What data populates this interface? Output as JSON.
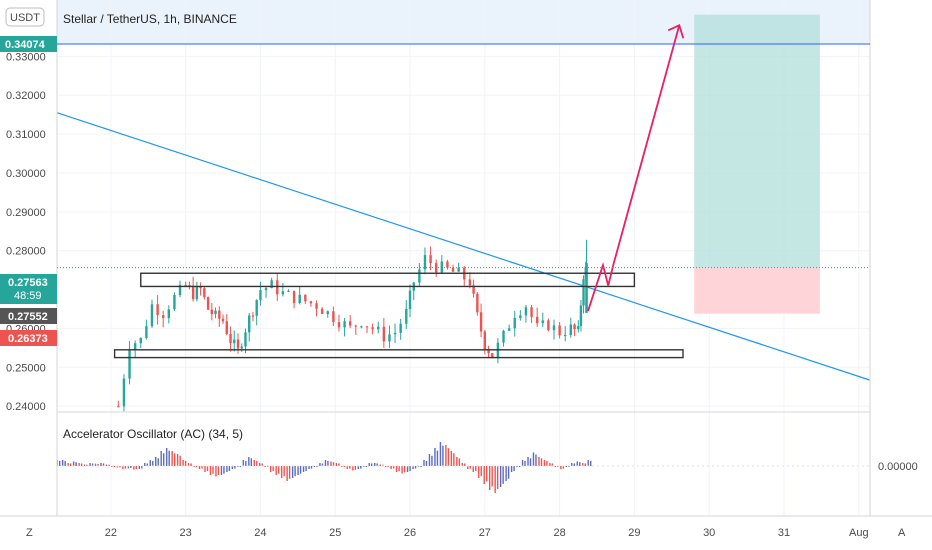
{
  "header": {
    "symbol_badge": "USDT",
    "title": "Stellar / TetherUS, 1h, BINANCE",
    "scale_mode_left": "Z",
    "scale_mode_right": "A"
  },
  "price_axis": {
    "ticks": [
      "0.33000",
      "0.32000",
      "0.31000",
      "0.30000",
      "0.29000",
      "0.28000",
      "0.26000",
      "0.25000",
      "0.24000"
    ],
    "labels": [
      {
        "text": "0.34074",
        "color": "#26a69a",
        "value": 0.34074
      },
      {
        "text": "0.27563",
        "color": "#26a69a",
        "value": 0.27563
      },
      {
        "text": "48:59",
        "color": "#26a69a",
        "value": 0.27563
      },
      {
        "text": "0.27552",
        "color": "#555555",
        "value": 0.27552
      },
      {
        "text": "0.26373",
        "color": "#ef5350",
        "value": 0.26373
      }
    ]
  },
  "time_axis": {
    "ticks": [
      "22",
      "23",
      "24",
      "25",
      "26",
      "27",
      "28",
      "29",
      "30",
      "31",
      "Aug"
    ]
  },
  "indicator": {
    "label": "Accelerator Oscillator (AC) (34, 5)",
    "value_label": "0.00000"
  },
  "colors": {
    "up": "#26a69a",
    "down": "#ef5350",
    "trendline": "#2196f3",
    "arrow": "#e91e63",
    "profit_zone": "#b2dfdb",
    "loss_zone": "#ffcdd2",
    "target_line": "#2962ff",
    "ac_up": "#5c6bc0",
    "ac_down": "#ef5350"
  },
  "chart_data": {
    "type": "candlestick",
    "title": "Stellar / TetherUS, 1h, BINANCE",
    "ylim": [
      0.2385,
      0.3445
    ],
    "x_range_days": [
      21.28,
      32.15
    ],
    "current_price": 0.27563,
    "target_price": 0.34074,
    "stop_price": 0.26373,
    "hourly_close_path": [
      [
        22.1,
        0.24
      ],
      [
        22.25,
        0.256
      ],
      [
        22.4,
        0.257
      ],
      [
        22.55,
        0.266
      ],
      [
        22.7,
        0.264
      ],
      [
        22.85,
        0.268
      ],
      [
        23.0,
        0.271
      ],
      [
        23.1,
        0.269
      ],
      [
        23.2,
        0.27
      ],
      [
        23.3,
        0.265
      ],
      [
        23.4,
        0.263
      ],
      [
        23.5,
        0.262
      ],
      [
        23.6,
        0.257
      ],
      [
        23.7,
        0.254
      ],
      [
        23.8,
        0.26
      ],
      [
        23.9,
        0.265
      ],
      [
        24.0,
        0.27
      ],
      [
        24.15,
        0.271
      ],
      [
        24.3,
        0.269
      ],
      [
        24.45,
        0.268
      ],
      [
        24.6,
        0.267
      ],
      [
        24.75,
        0.266
      ],
      [
        24.9,
        0.264
      ],
      [
        25.05,
        0.262
      ],
      [
        25.2,
        0.26
      ],
      [
        25.35,
        0.262
      ],
      [
        25.5,
        0.26
      ],
      [
        25.65,
        0.258
      ],
      [
        25.8,
        0.259
      ],
      [
        25.95,
        0.264
      ],
      [
        26.05,
        0.272
      ],
      [
        26.2,
        0.278
      ],
      [
        26.35,
        0.276
      ],
      [
        26.5,
        0.275
      ],
      [
        26.65,
        0.274
      ],
      [
        26.8,
        0.272
      ],
      [
        26.9,
        0.263
      ],
      [
        27.0,
        0.256
      ],
      [
        27.1,
        0.253
      ],
      [
        27.25,
        0.258
      ],
      [
        27.4,
        0.264
      ],
      [
        27.55,
        0.266
      ],
      [
        27.7,
        0.26
      ],
      [
        27.85,
        0.261
      ],
      [
        28.0,
        0.259
      ],
      [
        28.15,
        0.26
      ],
      [
        28.25,
        0.259
      ],
      [
        28.32,
        0.274
      ],
      [
        28.38,
        0.276
      ]
    ],
    "annotations": {
      "resistance_box": {
        "x": [
          22.4,
          29.0
        ],
        "y": [
          0.2708,
          0.2742
        ]
      },
      "support_box": {
        "x": [
          22.05,
          29.65
        ],
        "y": [
          0.2525,
          0.2545
        ]
      },
      "trendline": {
        "x": [
          21.28,
          32.15
        ],
        "y": [
          0.3155,
          0.2467
        ]
      },
      "projection_path": [
        [
          28.38,
          0.2645
        ],
        [
          28.58,
          0.2763
        ],
        [
          28.65,
          0.271
        ],
        [
          28.72,
          0.2765
        ],
        [
          29.6,
          0.338
        ]
      ],
      "position_tool": {
        "x": [
          29.8,
          31.48
        ],
        "entry": 0.2756,
        "target": 0.34074,
        "stop": 0.2638
      }
    },
    "indicator_values": [
      0.02,
      0.02,
      0.01,
      0.015,
      0.01,
      0.005,
      0.01,
      0.008,
      0.01,
      0.005,
      0.0,
      -0.005,
      -0.01,
      -0.008,
      -0.012,
      -0.01,
      0.01,
      0.02,
      0.03,
      0.05,
      0.06,
      0.05,
      0.04,
      0.02,
      0.01,
      0.0,
      -0.01,
      -0.02,
      -0.03,
      -0.035,
      -0.03,
      -0.02,
      -0.01,
      0.0,
      0.02,
      0.03,
      0.02,
      0.01,
      0.0,
      -0.02,
      -0.03,
      -0.04,
      -0.05,
      -0.04,
      -0.03,
      -0.02,
      -0.01,
      0.0,
      0.01,
      0.02,
      0.015,
      0.01,
      0.0,
      -0.01,
      -0.015,
      -0.01,
      0.0,
      0.01,
      0.01,
      0.005,
      0.0,
      -0.01,
      -0.02,
      -0.025,
      -0.02,
      -0.01,
      0.0,
      0.02,
      0.04,
      0.06,
      0.08,
      0.07,
      0.05,
      0.03,
      0.01,
      -0.01,
      -0.02,
      -0.04,
      -0.06,
      -0.08,
      -0.09,
      -0.07,
      -0.05,
      -0.02,
      0.0,
      0.02,
      0.03,
      0.045,
      0.03,
      0.02,
      0.01,
      0.0,
      -0.01,
      0.0,
      0.01,
      0.015,
      0.01,
      0.02
    ]
  }
}
